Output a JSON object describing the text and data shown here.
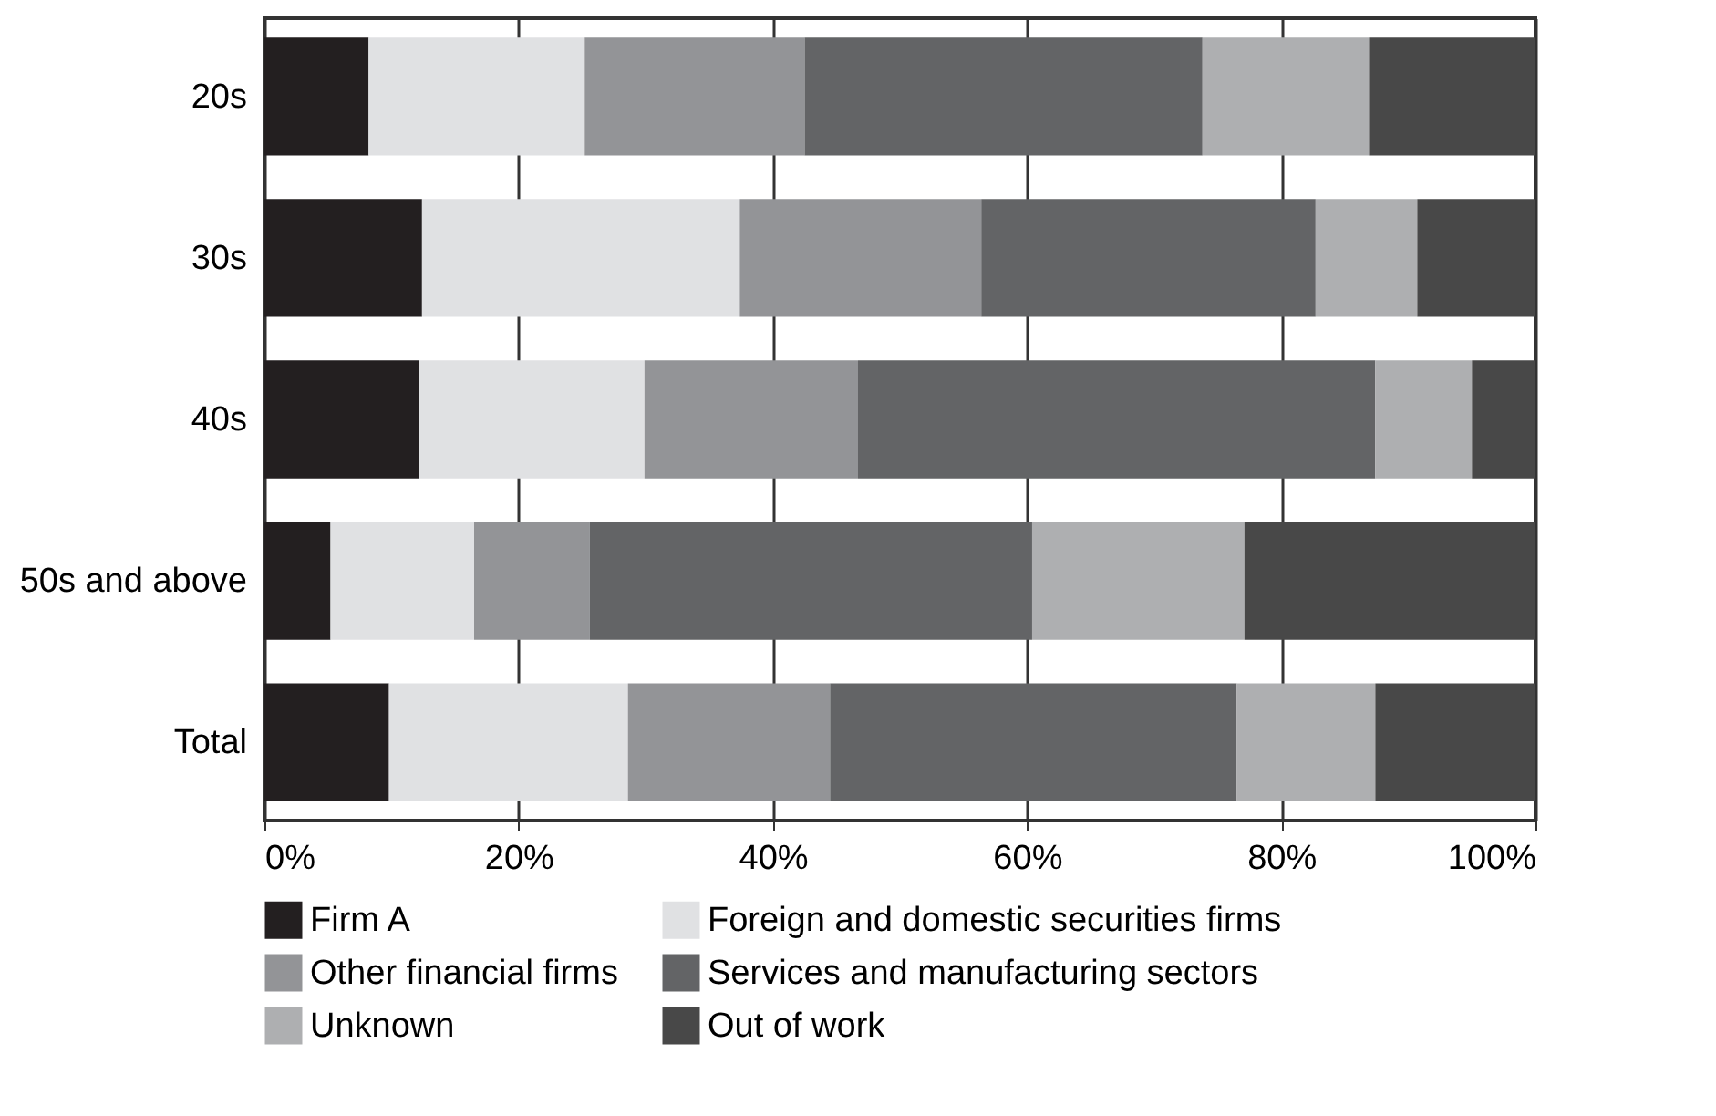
{
  "chart_data": {
    "type": "bar",
    "orientation": "horizontal",
    "stacked": true,
    "categories": [
      "20s",
      "30s",
      "40s",
      "50s and above",
      "Total"
    ],
    "series": [
      {
        "name": "Firm A",
        "color": "#231f20",
        "values": [
          8.2,
          12.4,
          12.2,
          5.2,
          9.8
        ]
      },
      {
        "name": "Foreign and domestic securities firms",
        "color": "#e0e1e3",
        "values": [
          17.0,
          25.0,
          17.7,
          11.3,
          18.8
        ]
      },
      {
        "name": "Other financial firms",
        "color": "#939497",
        "values": [
          17.3,
          19.0,
          16.8,
          9.1,
          15.9
        ]
      },
      {
        "name": "Services and manufacturing sectors",
        "color": "#636466",
        "values": [
          31.3,
          26.3,
          40.7,
          34.8,
          32.0
        ]
      },
      {
        "name": "Unknown",
        "color": "#aeafb1",
        "values": [
          13.1,
          8.0,
          7.6,
          16.7,
          10.9
        ]
      },
      {
        "name": "Out of work",
        "color": "#484848",
        "values": [
          13.1,
          9.3,
          5.0,
          22.9,
          12.6
        ]
      }
    ],
    "xlim": [
      0,
      100
    ],
    "xticks": [
      {
        "value": 0,
        "label": "0%"
      },
      {
        "value": 20,
        "label": "20%"
      },
      {
        "value": 40,
        "label": "40%"
      },
      {
        "value": 60,
        "label": "60%"
      },
      {
        "value": 80,
        "label": "80%"
      },
      {
        "value": 100,
        "label": "100%"
      }
    ],
    "grid": "x",
    "legend": "bottom"
  }
}
